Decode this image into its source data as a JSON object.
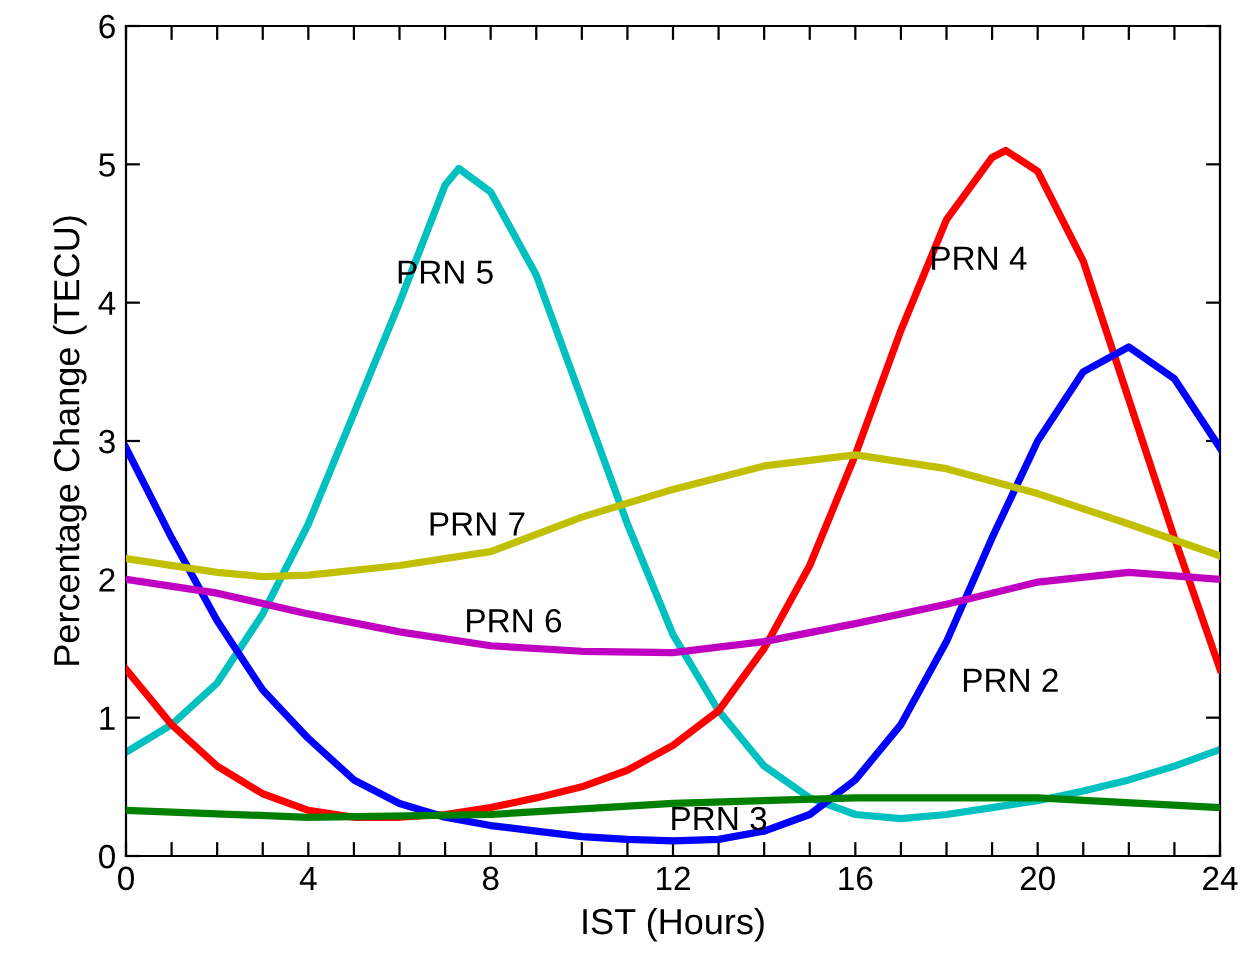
{
  "chart_data": {
    "type": "line",
    "xlabel": "IST (Hours)",
    "ylabel": "Percentage Change (TECU)",
    "xlim": [
      0,
      24
    ],
    "ylim": [
      0,
      6
    ],
    "xticks": [
      0,
      {
        "value": 1,
        "label": null
      },
      {
        "value": 2,
        "label": null
      },
      {
        "value": 3,
        "label": null
      },
      4,
      {
        "value": 5,
        "label": null
      },
      {
        "value": 6,
        "label": null
      },
      {
        "value": 7,
        "label": null
      },
      8,
      {
        "value": 9,
        "label": null
      },
      {
        "value": 10,
        "label": null
      },
      {
        "value": 11,
        "label": null
      },
      12,
      {
        "value": 13,
        "label": null
      },
      {
        "value": 14,
        "label": null
      },
      {
        "value": 15,
        "label": null
      },
      16,
      {
        "value": 17,
        "label": null
      },
      {
        "value": 18,
        "label": null
      },
      {
        "value": 19,
        "label": null
      },
      20,
      {
        "value": 21,
        "label": null
      },
      {
        "value": 22,
        "label": null
      },
      {
        "value": 23,
        "label": null
      },
      24
    ],
    "yticks": [
      0,
      1,
      2,
      3,
      4,
      5,
      6
    ],
    "grid": false,
    "marker": "none",
    "line_style": "solid",
    "series": [
      {
        "name": "PRN 5",
        "color": "#00c0c0",
        "x": [
          0,
          1,
          2,
          3,
          4,
          5,
          6,
          7,
          7.3,
          8,
          9,
          10,
          11,
          12,
          13,
          14,
          15,
          16,
          17,
          18,
          19,
          20,
          21,
          22,
          23,
          24
        ],
        "values": [
          0.75,
          0.95,
          1.25,
          1.75,
          2.4,
          3.2,
          4.0,
          4.85,
          4.97,
          4.8,
          4.2,
          3.3,
          2.4,
          1.6,
          1.05,
          0.65,
          0.42,
          0.3,
          0.27,
          0.3,
          0.35,
          0.4,
          0.47,
          0.55,
          0.65,
          0.77
        ]
      },
      {
        "name": "PRN 4",
        "color": "#ff0000",
        "x": [
          0,
          1,
          2,
          3,
          4,
          5,
          6,
          7,
          8,
          9,
          10,
          11,
          12,
          13,
          14,
          15,
          16,
          17,
          18,
          19,
          19.3,
          20,
          21,
          22,
          23,
          24
        ],
        "values": [
          1.35,
          0.95,
          0.65,
          0.45,
          0.33,
          0.28,
          0.28,
          0.3,
          0.35,
          0.42,
          0.5,
          0.62,
          0.8,
          1.05,
          1.5,
          2.1,
          2.9,
          3.8,
          4.6,
          5.05,
          5.1,
          4.95,
          4.3,
          3.3,
          2.3,
          1.35
        ]
      },
      {
        "name": "PRN 2",
        "color": "#0000ff",
        "x": [
          0,
          1,
          2,
          3,
          4,
          5,
          6,
          7,
          8,
          9,
          10,
          11,
          12,
          13,
          14,
          15,
          16,
          17,
          18,
          19,
          20,
          21,
          22,
          23,
          24
        ],
        "values": [
          2.95,
          2.3,
          1.7,
          1.2,
          0.85,
          0.55,
          0.38,
          0.28,
          0.22,
          0.18,
          0.14,
          0.12,
          0.11,
          0.12,
          0.18,
          0.3,
          0.55,
          0.95,
          1.55,
          2.3,
          3.0,
          3.5,
          3.68,
          3.45,
          2.95
        ]
      },
      {
        "name": "PRN 7",
        "color": "#c0c000",
        "x": [
          0,
          2,
          3,
          4,
          6,
          8,
          10,
          12,
          14,
          16,
          18,
          20,
          22,
          24
        ],
        "values": [
          2.15,
          2.05,
          2.02,
          2.03,
          2.1,
          2.2,
          2.45,
          2.65,
          2.82,
          2.9,
          2.8,
          2.62,
          2.4,
          2.17
        ]
      },
      {
        "name": "PRN 6",
        "color": "#c000c0",
        "x": [
          0,
          2,
          4,
          6,
          8,
          10,
          12,
          14,
          16,
          18,
          20,
          22,
          24
        ],
        "values": [
          2.0,
          1.9,
          1.75,
          1.62,
          1.52,
          1.48,
          1.47,
          1.55,
          1.68,
          1.82,
          1.98,
          2.05,
          2.0
        ]
      },
      {
        "name": "PRN 3",
        "color": "#008000",
        "x": [
          0,
          4,
          8,
          12,
          16,
          20,
          24
        ],
        "values": [
          0.33,
          0.28,
          0.3,
          0.38,
          0.42,
          0.42,
          0.35
        ]
      }
    ]
  }
}
